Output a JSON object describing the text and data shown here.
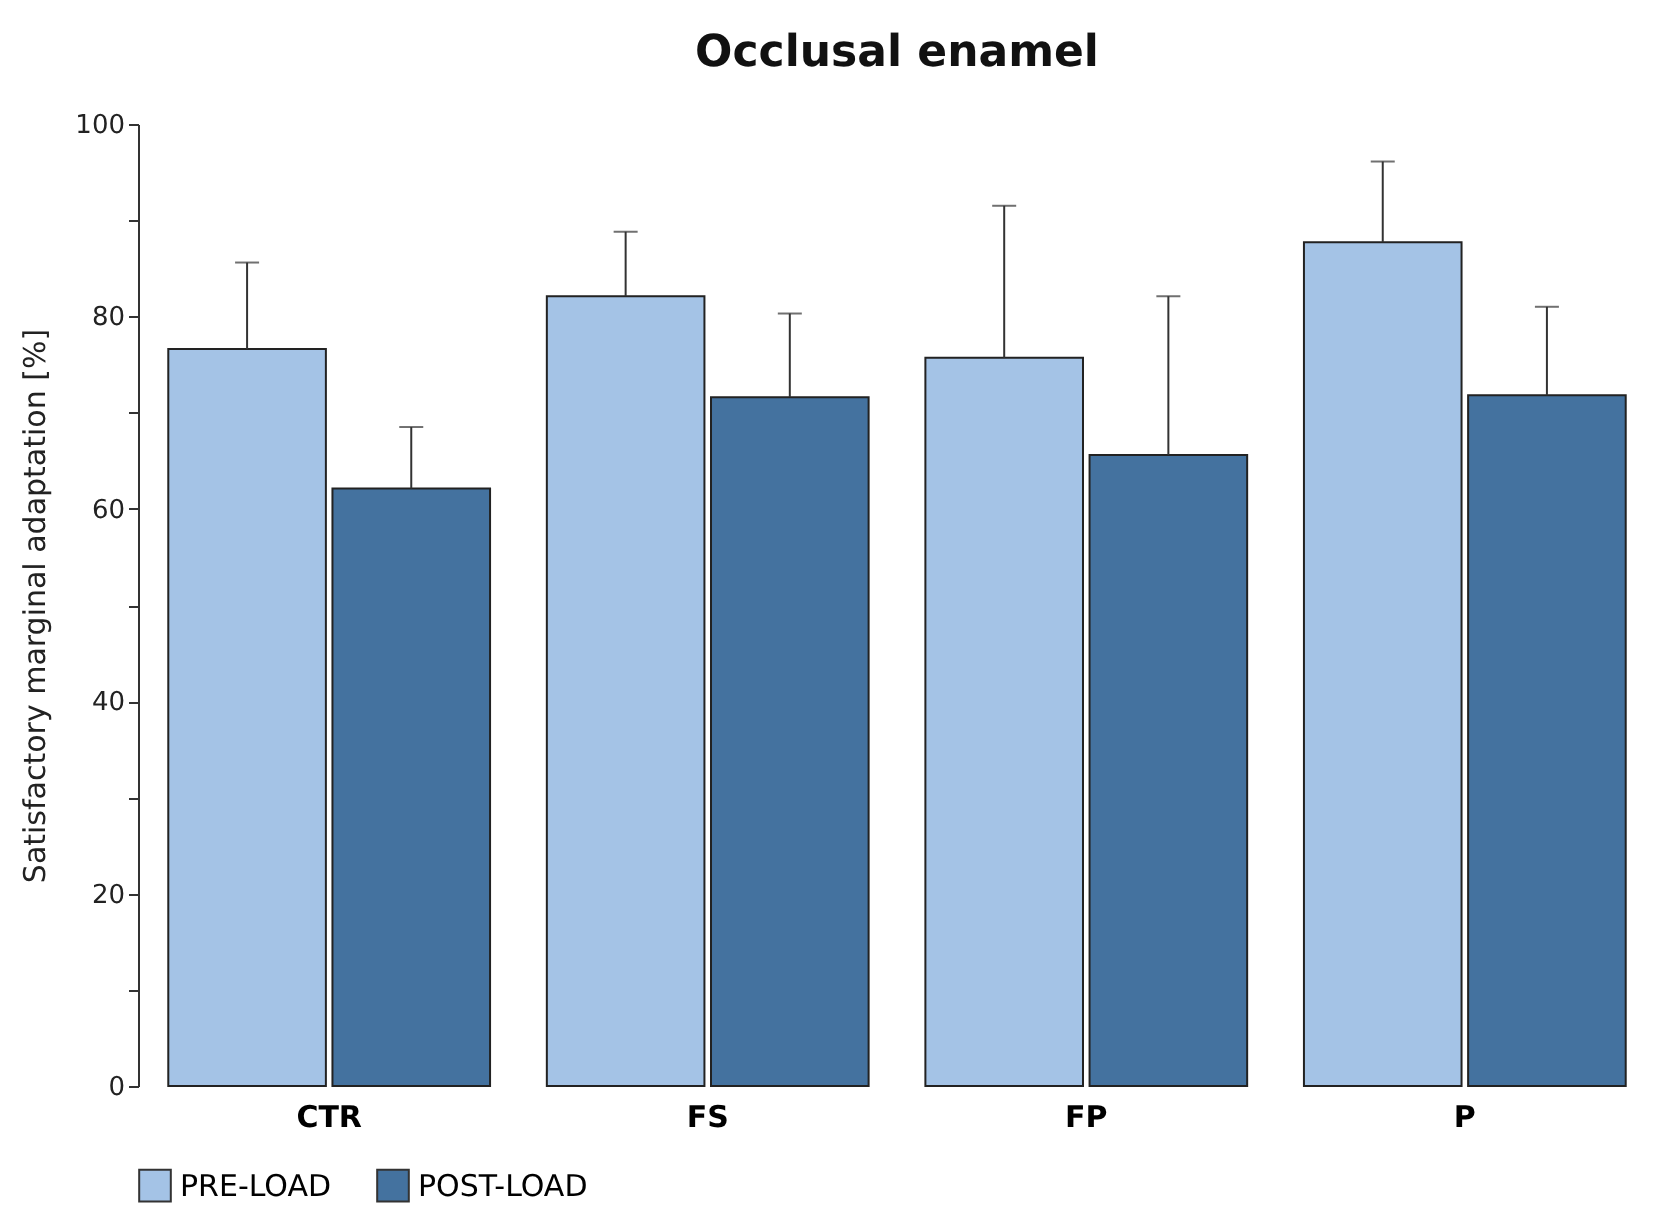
{
  "chart_data": {
    "type": "bar",
    "title": "Occlusal enamel",
    "ylabel": "Satisfactory marginal adaptation [%]",
    "categories": [
      "CTR",
      "FS",
      "FP",
      "P"
    ],
    "series": [
      {
        "name": "PRE-LOAD",
        "color": "#a4c3e6",
        "values": [
          76.6,
          82.1,
          75.7,
          87.7
        ],
        "errors": [
          [
            76.6,
            85.6
          ],
          [
            82.1,
            88.8
          ],
          [
            75.7,
            91.5
          ],
          [
            87.7,
            96.1
          ]
        ]
      },
      {
        "name": "POST-LOAD",
        "color": "#44729f",
        "values": [
          62.1,
          71.6,
          65.6,
          71.8
        ],
        "errors": [
          [
            62.1,
            68.5
          ],
          [
            71.6,
            80.3
          ],
          [
            65.6,
            82.1
          ],
          [
            71.8,
            81.0
          ]
        ]
      }
    ],
    "ylim": [
      0,
      100
    ],
    "yticks": [
      0,
      {
        "value": 10,
        "label": null
      },
      20,
      {
        "value": 30,
        "label": null
      },
      40,
      {
        "value": 50,
        "label": null
      },
      60,
      {
        "value": 70,
        "label": null
      },
      80,
      {
        "value": 90,
        "label": null
      },
      100
    ],
    "grid": false,
    "legend": "bottom"
  }
}
